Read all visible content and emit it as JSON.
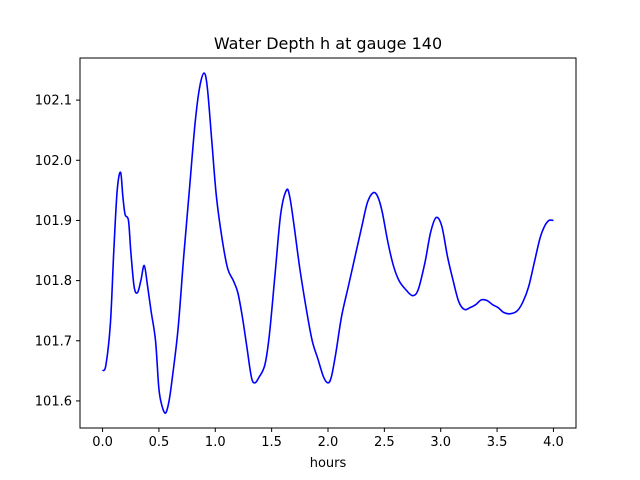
{
  "chart_data": {
    "type": "line",
    "title": "Water Depth h at gauge 140",
    "xlabel": "hours",
    "ylabel": "",
    "xlim": [
      -0.2,
      4.2
    ],
    "ylim": [
      101.555,
      102.17
    ],
    "x_ticks": [
      0.0,
      0.5,
      1.0,
      1.5,
      2.0,
      2.5,
      3.0,
      3.5,
      4.0
    ],
    "x_tick_labels": [
      "0.0",
      "0.5",
      "1.0",
      "1.5",
      "2.0",
      "2.5",
      "3.0",
      "3.5",
      "4.0"
    ],
    "y_ticks": [
      101.6,
      101.7,
      101.8,
      101.9,
      102.0,
      102.1
    ],
    "y_tick_labels": [
      "101.6",
      "101.7",
      "101.8",
      "101.9",
      "102.0",
      "102.1"
    ],
    "grid": false,
    "series": [
      {
        "name": "",
        "color": "#0000ff",
        "x": [
          0.0,
          0.03,
          0.07,
          0.1,
          0.13,
          0.16,
          0.18,
          0.2,
          0.23,
          0.25,
          0.28,
          0.31,
          0.34,
          0.37,
          0.4,
          0.43,
          0.47,
          0.5,
          0.53,
          0.56,
          0.59,
          0.62,
          0.67,
          0.72,
          0.77,
          0.82,
          0.86,
          0.9,
          0.93,
          0.97,
          1.01,
          1.06,
          1.11,
          1.16,
          1.2,
          1.24,
          1.28,
          1.32,
          1.35,
          1.39,
          1.44,
          1.48,
          1.53,
          1.58,
          1.63,
          1.66,
          1.7,
          1.75,
          1.81,
          1.86,
          1.91,
          1.96,
          2.0,
          2.03,
          2.07,
          2.12,
          2.18,
          2.24,
          2.3,
          2.35,
          2.4,
          2.44,
          2.48,
          2.53,
          2.58,
          2.63,
          2.69,
          2.75,
          2.8,
          2.86,
          2.91,
          2.96,
          3.01,
          3.06,
          3.11,
          3.16,
          3.21,
          3.26,
          3.31,
          3.36,
          3.41,
          3.46,
          3.51,
          3.56,
          3.62,
          3.68,
          3.73,
          3.78,
          3.83,
          3.88,
          3.92,
          3.96,
          4.0
        ],
        "values": [
          101.65,
          101.66,
          101.73,
          101.85,
          101.95,
          101.98,
          101.94,
          101.91,
          101.9,
          101.85,
          101.79,
          101.78,
          101.8,
          101.825,
          101.79,
          101.75,
          101.7,
          101.62,
          101.59,
          101.58,
          101.6,
          101.64,
          101.72,
          101.84,
          101.95,
          102.06,
          102.12,
          102.145,
          102.12,
          102.03,
          101.94,
          101.87,
          101.82,
          101.8,
          101.78,
          101.74,
          101.69,
          101.64,
          101.63,
          101.64,
          101.66,
          101.71,
          101.81,
          101.91,
          101.95,
          101.94,
          101.89,
          101.82,
          101.75,
          101.7,
          101.67,
          101.64,
          101.63,
          101.64,
          101.68,
          101.74,
          101.79,
          101.84,
          101.89,
          101.93,
          101.946,
          101.94,
          101.915,
          101.865,
          101.825,
          101.8,
          101.785,
          101.775,
          101.785,
          101.83,
          101.88,
          101.905,
          101.89,
          101.84,
          101.8,
          101.765,
          101.752,
          101.755,
          101.76,
          101.768,
          101.767,
          101.76,
          101.755,
          101.747,
          101.745,
          101.75,
          101.765,
          101.79,
          101.83,
          101.87,
          101.89,
          101.9,
          101.9
        ]
      }
    ]
  }
}
